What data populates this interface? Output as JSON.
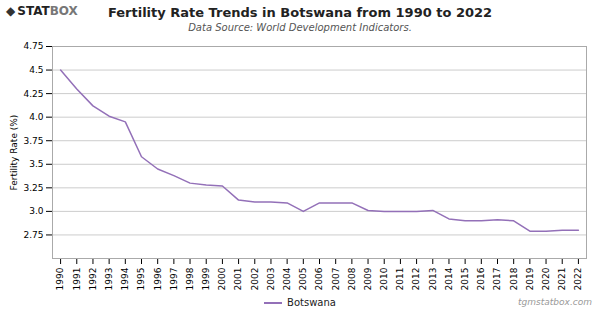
{
  "chart_data": {
    "type": "line",
    "title": "Fertility Rate Trends in Botswana from 1990 to 2022",
    "subtitle": "Data Source: World Development Indicators.",
    "ylabel": "Fertility Rate (%)",
    "x": [
      1990,
      1991,
      1992,
      1993,
      1994,
      1995,
      1996,
      1997,
      1998,
      1999,
      2000,
      2001,
      2002,
      2003,
      2004,
      2005,
      2006,
      2007,
      2008,
      2009,
      2010,
      2011,
      2012,
      2013,
      2014,
      2015,
      2016,
      2017,
      2018,
      2019,
      2020,
      2021,
      2022
    ],
    "series": [
      {
        "name": "Botswana",
        "color": "#9370b8",
        "values": [
          4.5,
          4.3,
          4.12,
          4.01,
          3.95,
          3.58,
          3.45,
          3.38,
          3.3,
          3.28,
          3.27,
          3.12,
          3.1,
          3.1,
          3.09,
          3.0,
          3.09,
          3.09,
          3.09,
          3.01,
          3.0,
          3.0,
          3.0,
          3.01,
          2.92,
          2.9,
          2.9,
          2.91,
          2.9,
          2.79,
          2.79,
          2.8,
          2.8
        ]
      }
    ],
    "xlim": [
      1989.5,
      2022.5
    ],
    "xticks": [
      1990,
      1991,
      1992,
      1993,
      1994,
      1995,
      1996,
      1997,
      1998,
      1999,
      2000,
      2001,
      2002,
      2003,
      2004,
      2005,
      2006,
      2007,
      2008,
      2009,
      2010,
      2011,
      2012,
      2013,
      2014,
      2015,
      2016,
      2017,
      2018,
      2019,
      2020,
      2021,
      2022
    ],
    "ylim": [
      2.5,
      4.75
    ],
    "yticks": [
      2.75,
      {
        "value": 3.0,
        "label": "3.0"
      },
      3.25,
      3.5,
      3.75,
      {
        "value": 4.0,
        "label": "4.0"
      },
      4.25,
      4.5,
      4.75
    ],
    "grid": true,
    "legend": "bottom",
    "annotations": [
      "◆",
      "STAT",
      "BOX",
      "tgmstatbox.com"
    ]
  }
}
